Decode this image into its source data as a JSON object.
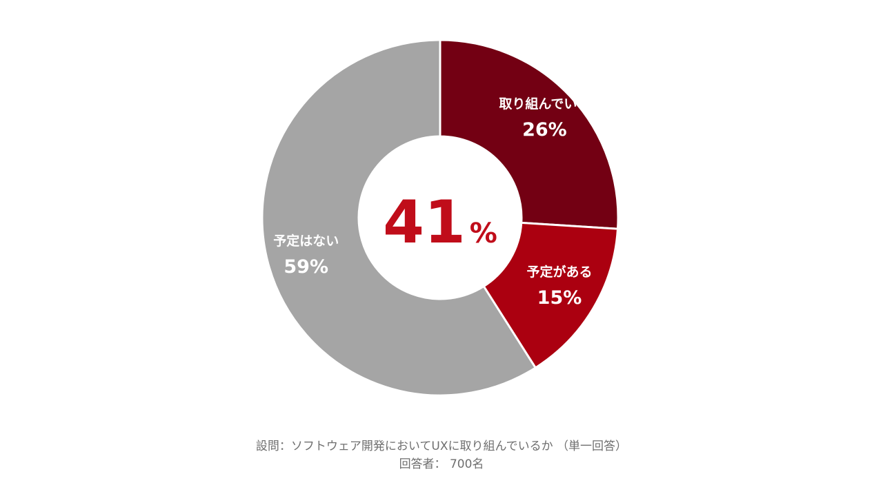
{
  "chart_data": {
    "type": "pie",
    "donut": true,
    "center_label": {
      "value": "41",
      "unit": "%"
    },
    "slices": [
      {
        "label": "取り組んでいる",
        "value": 26,
        "display": "26%",
        "color": "#730013"
      },
      {
        "label": "予定がある",
        "value": 15,
        "display": "15%",
        "color": "#ab0010"
      },
      {
        "label": "予定はない",
        "value": 59,
        "display": "59%",
        "color": "#a5a5a5"
      }
    ],
    "start": "12 o'clock",
    "direction": "clockwise"
  },
  "colors": {
    "center_text": "#c00d1a",
    "slice_text": "#ffffff",
    "caption_text": "#6e6e6e",
    "separator": "#ffffff"
  },
  "caption": {
    "question": "設問：ソフトウェア開発においてUXに取り組んでいるか （単一回答）",
    "respondents": "回答者： 700名"
  }
}
